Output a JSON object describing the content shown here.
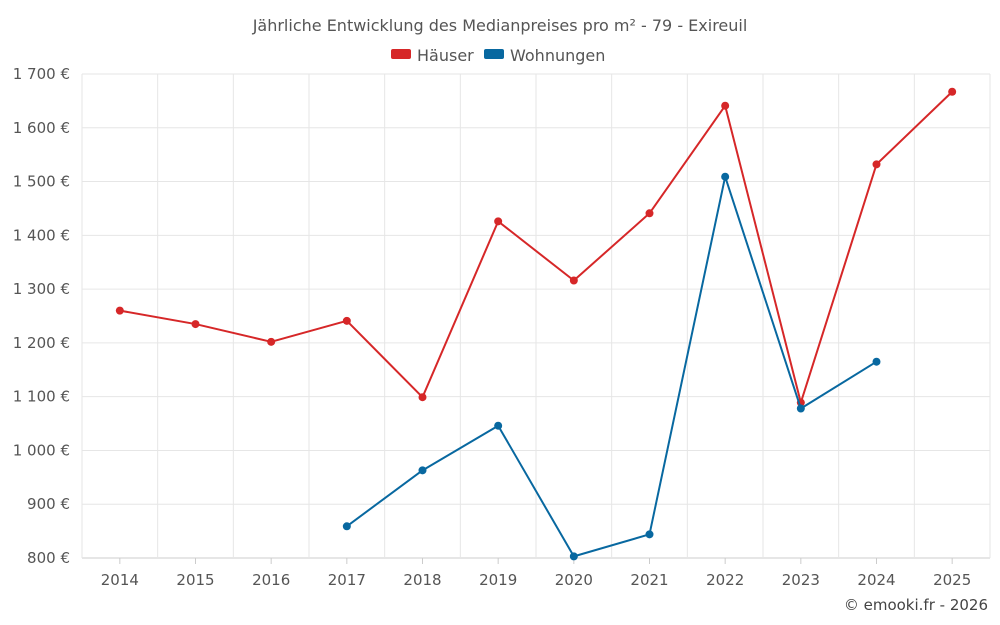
{
  "chart_data": {
    "type": "line",
    "title": "Jährliche Entwicklung des Medianpreises pro m² - 79 - Exireuil",
    "xlabel": "",
    "ylabel": "",
    "categories": [
      "2014",
      "2015",
      "2016",
      "2017",
      "2018",
      "2019",
      "2020",
      "2021",
      "2022",
      "2023",
      "2024",
      "2025"
    ],
    "ylim": [
      800,
      1700
    ],
    "yticks": [
      800,
      900,
      1000,
      1100,
      1200,
      1300,
      1400,
      1500,
      1600,
      1700
    ],
    "ytick_labels": [
      "800 €",
      "900 €",
      "1 000 €",
      "1 100 €",
      "1 200 €",
      "1 300 €",
      "1 400 €",
      "1 500 €",
      "1 600 €",
      "1 700 €"
    ],
    "legend_position": "top-center",
    "series": [
      {
        "name": "Häuser",
        "color": "#d62728",
        "values": [
          1260,
          1235,
          1202,
          1241,
          1099,
          1426,
          1316,
          1441,
          1641,
          1089,
          1532,
          1667
        ]
      },
      {
        "name": "Wohnungen",
        "color": "#0868a0",
        "values": [
          null,
          null,
          null,
          859,
          963,
          1046,
          803,
          844,
          1509,
          1078,
          1165,
          null
        ]
      }
    ],
    "credit": "© emooki.fr - 2026"
  }
}
